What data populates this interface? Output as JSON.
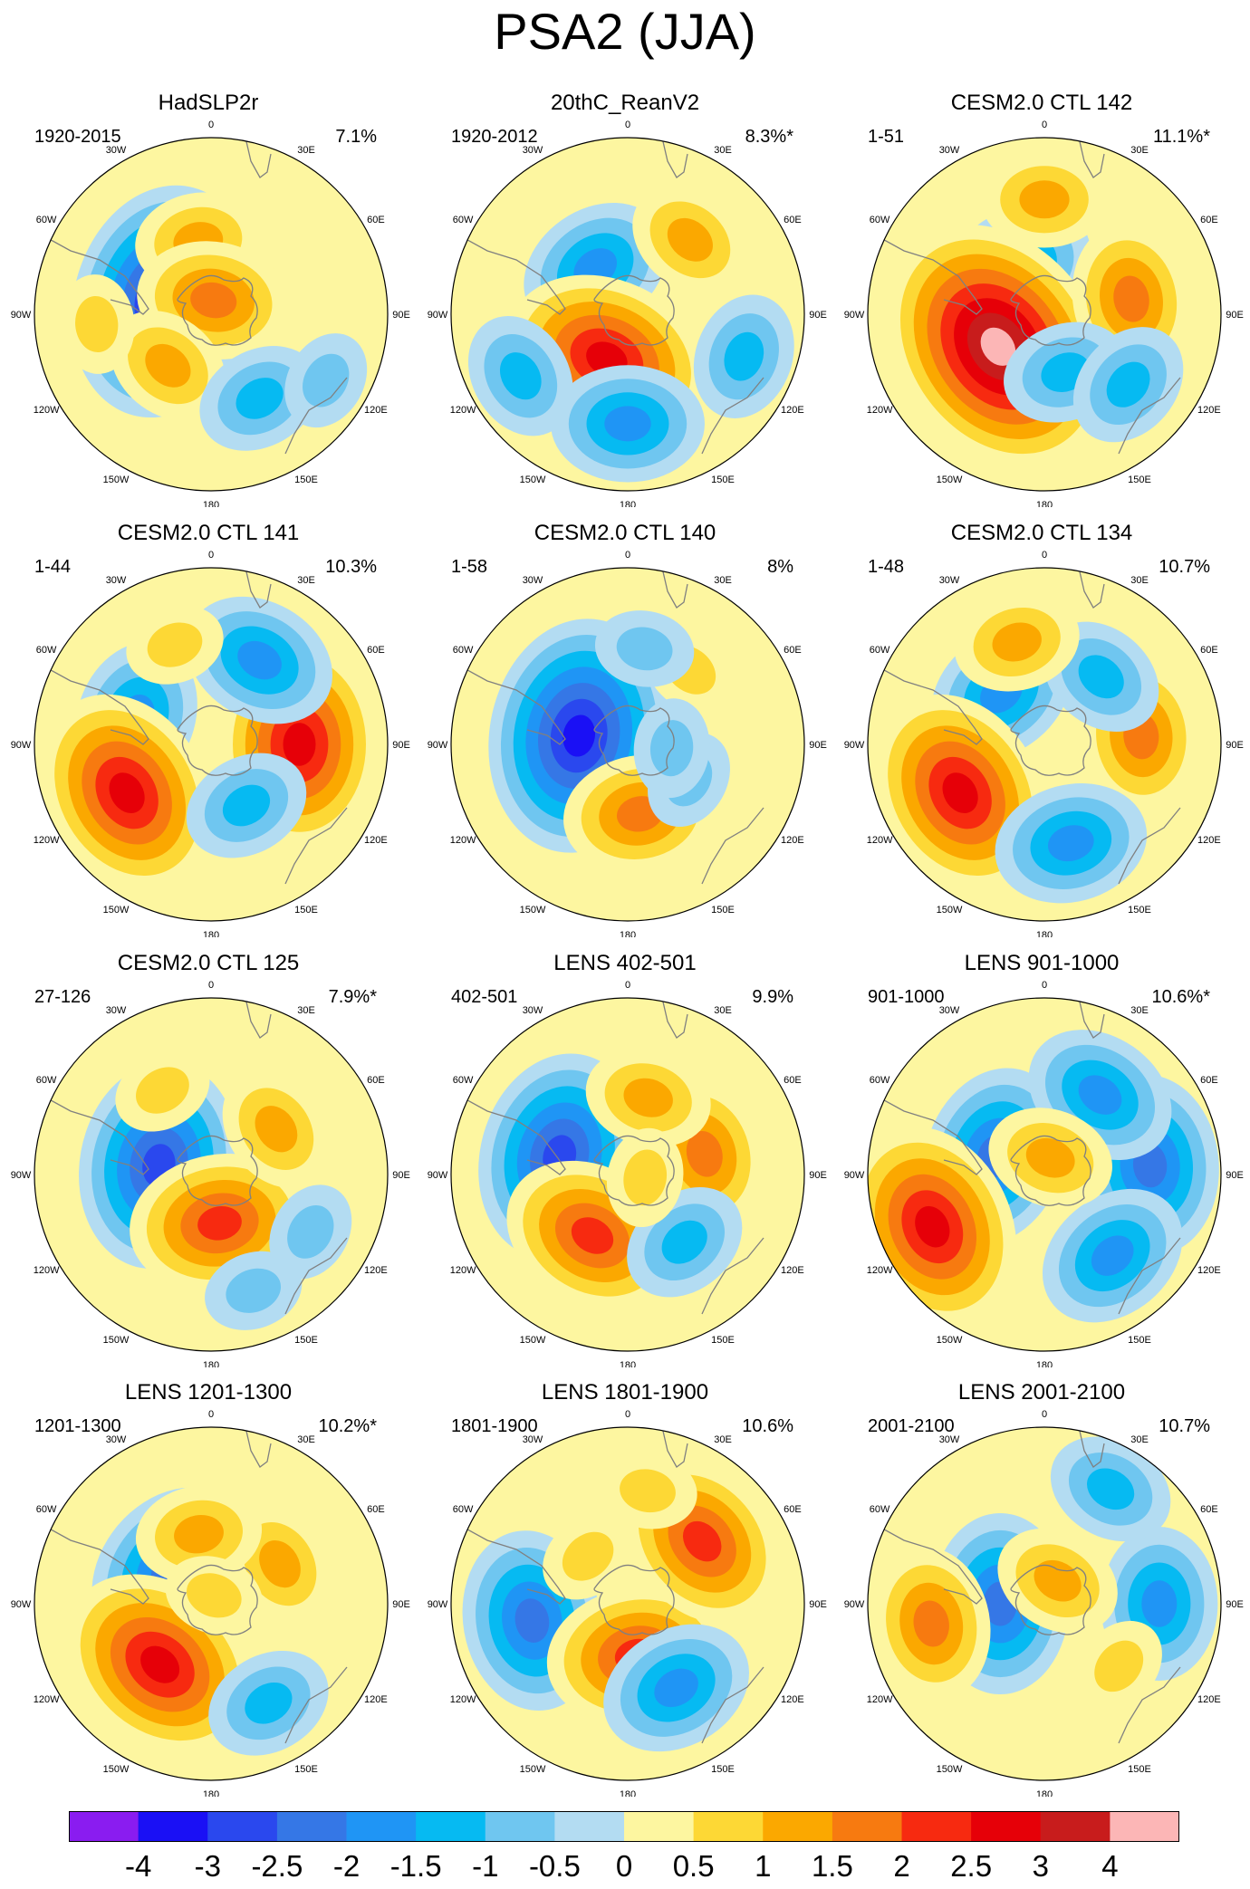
{
  "figure": {
    "title": "PSA2 (JJA)"
  },
  "panels": [
    {
      "title": "HadSLP2r",
      "period": "1920-2015",
      "variance": "7.1%"
    },
    {
      "title": "20thC_ReanV2",
      "period": "1920-2012",
      "variance": "8.3%*"
    },
    {
      "title": "CESM2.0 CTL 142",
      "period": "1-51",
      "variance": "11.1%*"
    },
    {
      "title": "CESM2.0 CTL 141",
      "period": "1-44",
      "variance": "10.3%"
    },
    {
      "title": "CESM2.0 CTL 140",
      "period": "1-58",
      "variance": "8%"
    },
    {
      "title": "CESM2.0 CTL 134",
      "period": "1-48",
      "variance": "10.7%"
    },
    {
      "title": "CESM2.0 CTL 125",
      "period": "27-126",
      "variance": "7.9%*"
    },
    {
      "title": "LENS 402-501",
      "period": "402-501",
      "variance": "9.9%"
    },
    {
      "title": "LENS 901-1000",
      "period": "901-1000",
      "variance": "10.6%*"
    },
    {
      "title": "LENS 1201-1300",
      "period": "1201-1300",
      "variance": "10.2%*"
    },
    {
      "title": "LENS 1801-1900",
      "period": "1801-1900",
      "variance": "10.6%"
    },
    {
      "title": "LENS 2001-2100",
      "period": "2001-2100",
      "variance": "10.7%"
    }
  ],
  "longitude_labels": [
    "0",
    "30E",
    "60E",
    "90E",
    "120E",
    "150E",
    "180",
    "150W",
    "120W",
    "90W",
    "60W",
    "30W"
  ],
  "colorbar": {
    "labels": [
      "-4",
      "-3",
      "-2.5",
      "-2",
      "-1.5",
      "-1",
      "-0.5",
      "0",
      "0.5",
      "1",
      "1.5",
      "2",
      "2.5",
      "3",
      "4"
    ],
    "colors": [
      "#8a1cf0",
      "#1a10f5",
      "#2a48ee",
      "#3577e6",
      "#1f95f5",
      "#06baf2",
      "#6fc6f0",
      "#b3dcf2",
      "#fdf6a0",
      "#fdd835",
      "#fba800",
      "#f77a10",
      "#f72a10",
      "#e60008",
      "#c81c1c",
      "#fcb6b6"
    ]
  },
  "theme": {
    "land_outline": "#808080",
    "frame": "#000000"
  }
}
